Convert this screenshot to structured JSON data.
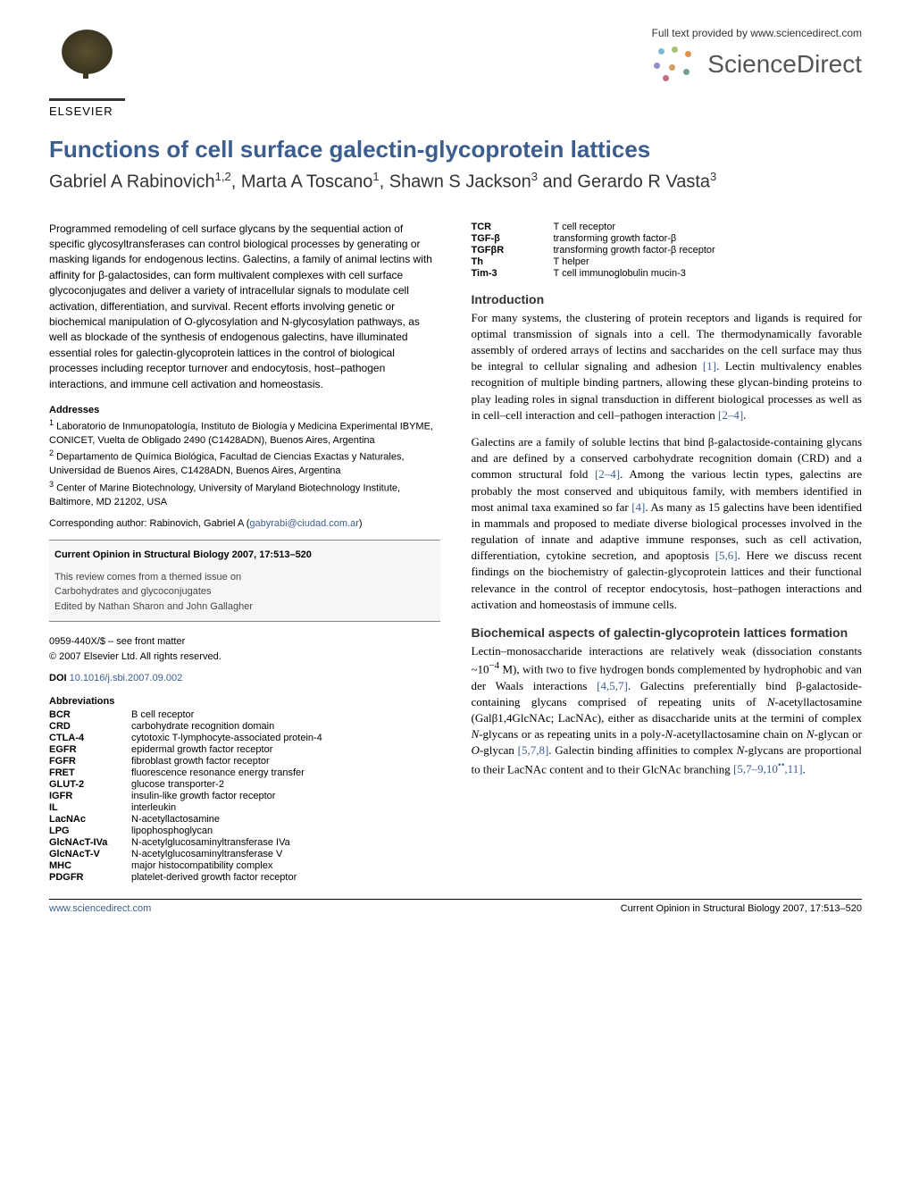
{
  "header": {
    "elsevier_label": "ELSEVIER",
    "sd_provided": "Full text provided by www.sciencedirect.com",
    "sd_name": "ScienceDirect"
  },
  "title": "Functions of cell surface galectin-glycoprotein lattices",
  "authors_html": "Gabriel A Rabinovich<sup>1,2</sup>, Marta A Toscano<sup>1</sup>, Shawn S Jackson<sup>3</sup> and Gerardo R Vasta<sup>3</sup>",
  "abstract": "Programmed remodeling of cell surface glycans by the sequential action of specific glycosyltransferases can control biological processes by generating or masking ligands for endogenous lectins. Galectins, a family of animal lectins with affinity for β-galactosides, can form multivalent complexes with cell surface glycoconjugates and deliver a variety of intracellular signals to modulate cell activation, differentiation, and survival. Recent efforts involving genetic or biochemical manipulation of O-glycosylation and N-glycosylation pathways, as well as blockade of the synthesis of endogenous galectins, have illuminated essential roles for galectin-glycoprotein lattices in the control of biological processes including receptor turnover and endocytosis, host–pathogen interactions, and immune cell activation and homeostasis.",
  "addresses_label": "Addresses",
  "addresses": [
    "<sup>1</sup> Laboratorio de Inmunopatología, Instituto de Biología y Medicina Experimental IBYME, CONICET, Vuelta de Obligado 2490 (C1428ADN), Buenos Aires, Argentina",
    "<sup>2</sup> Departamento de Química Biológica, Facultad de Ciencias Exactas y Naturales, Universidad de Buenos Aires, C1428ADN, Buenos Aires, Argentina",
    "<sup>3</sup> Center of Marine Biotechnology, University of Maryland Biotechnology Institute, Baltimore, MD 21202, USA"
  ],
  "corresponding": {
    "label": "Corresponding author: Rabinovich, Gabriel A (",
    "email": "gabyrabi@ciudad.com.ar",
    "close": ")"
  },
  "infobox": {
    "journal_ref": "Current Opinion in Structural Biology 2007, 17:513–520",
    "themed_1": "This review comes from a themed issue on",
    "themed_2": "Carbohydrates and glycoconjugates",
    "themed_3": "Edited by Nathan Sharon and John Gallagher"
  },
  "front_matter": {
    "issn": "0959-440X/$ – see front matter",
    "copyright": "© 2007 Elsevier Ltd. All rights reserved."
  },
  "doi": {
    "label": "DOI",
    "value": "10.1016/j.sbi.2007.09.002"
  },
  "abbr_label": "Abbreviations",
  "abbr_left": [
    {
      "k": "BCR",
      "v": "B cell receptor"
    },
    {
      "k": "CRD",
      "v": "carbohydrate recognition domain"
    },
    {
      "k": "CTLA-4",
      "v": "cytotoxic T-lymphocyte-associated protein-4"
    },
    {
      "k": "EGFR",
      "v": "epidermal growth factor receptor"
    },
    {
      "k": "FGFR",
      "v": "fibroblast growth factor receptor"
    },
    {
      "k": "FRET",
      "v": "fluorescence resonance energy transfer"
    },
    {
      "k": "GLUT-2",
      "v": "glucose transporter-2"
    },
    {
      "k": "IGFR",
      "v": "insulin-like growth factor receptor"
    },
    {
      "k": "IL",
      "v": "interleukin"
    },
    {
      "k": "LacNAc",
      "v": "N-acetyllactosamine"
    },
    {
      "k": "LPG",
      "v": "lipophosphoglycan"
    },
    {
      "k": "GlcNAcT-IVa",
      "v": "N-acetylglucosaminyltransferase IVa"
    },
    {
      "k": "GlcNAcT-V",
      "v": "N-acetylglucosaminyltransferase V"
    },
    {
      "k": "MHC",
      "v": "major histocompatibility complex"
    },
    {
      "k": "PDGFR",
      "v": "platelet-derived growth factor receptor"
    }
  ],
  "abbr_right": [
    {
      "k": "TCR",
      "v": "T cell receptor"
    },
    {
      "k": "TGF-β",
      "v": "transforming growth factor-β"
    },
    {
      "k": "TGFβR",
      "v": "transforming growth factor-β receptor"
    },
    {
      "k": "Th",
      "v": "T helper"
    },
    {
      "k": "Tim-3",
      "v": "T cell immunoglobulin mucin-3"
    }
  ],
  "intro_head": "Introduction",
  "intro_paras": [
    "For many systems, the clustering of protein receptors and ligands is required for optimal transmission of signals into a cell. The thermodynamically favorable assembly of ordered arrays of lectins and saccharides on the cell surface may thus be integral to cellular signaling and adhesion <span class=\"ref\">[1]</span>. Lectin multivalency enables recognition of multiple binding partners, allowing these glycan-binding proteins to play leading roles in signal transduction in different biological processes as well as in cell–cell interaction and cell–pathogen interaction <span class=\"ref\">[2–4]</span>.",
    "Galectins are a family of soluble lectins that bind β-galactoside-containing glycans and are defined by a conserved carbohydrate recognition domain (CRD) and a common structural fold <span class=\"ref\">[2–4]</span>. Among the various lectin types, galectins are probably the most conserved and ubiquitous family, with members identified in most animal taxa examined so far <span class=\"ref\">[4]</span>. As many as 15 galectins have been identified in mammals and proposed to mediate diverse biological processes involved in the regulation of innate and adaptive immune responses, such as cell activation, differentiation, cytokine secretion, and apoptosis <span class=\"ref\">[5,6]</span>. Here we discuss recent findings on the biochemistry of galectin-glycoprotein lattices and their functional relevance in the control of receptor endocytosis, host–pathogen interactions and activation and homeostasis of immune cells."
  ],
  "biochem_head": "Biochemical aspects of galectin-glycoprotein lattices formation",
  "biochem_para": "Lectin–monosaccharide interactions are relatively weak (dissociation constants ~10<sup>−4</sup> M), with two to five hydrogen bonds complemented by hydrophobic and van der Waals interactions <span class=\"ref\">[4,5,7]</span>. Galectins preferentially bind β-galactoside-containing glycans comprised of repeating units of <i>N</i>-acetyllactosamine (Galβ1,4GlcNAc; LacNAc), either as disaccharide units at the termini of complex <i>N</i>-glycans or as repeating units in a poly-<i>N</i>-acetyllactosamine chain on <i>N</i>-glycan or <i>O</i>-glycan <span class=\"ref\">[5,7,8]</span>. Galectin binding affinities to complex <i>N</i>-glycans are proportional to their LacNAc content and to their GlcNAc branching <span class=\"ref\">[5,7–9,10<sup>••</sup>,11]</span>.",
  "footer": {
    "left": "www.sciencedirect.com",
    "right": "Current Opinion in Structural Biology 2007, 17:513–520"
  },
  "colors": {
    "heading_blue": "#3b5e8e",
    "link_blue": "#3b5e8e",
    "text": "#000000",
    "bg": "#ffffff",
    "infobox_bg": "#f7f7f7"
  }
}
